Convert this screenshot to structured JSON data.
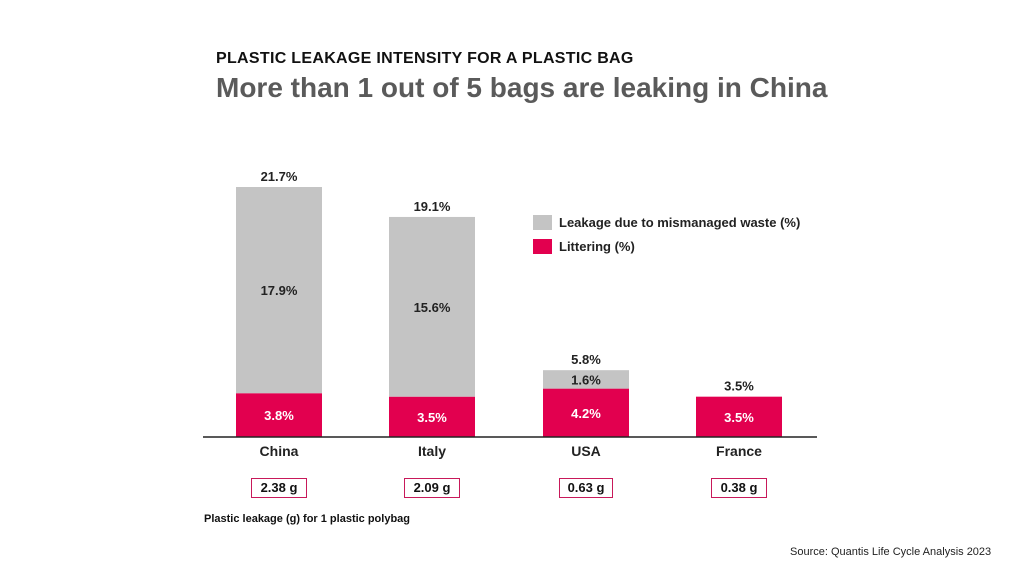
{
  "header": {
    "kicker": "PLASTIC LEAKAGE INTENSITY FOR A PLASTIC BAG",
    "headline": "More than 1 out of 5 bags are leaking in China"
  },
  "colors": {
    "mismanaged": "#c4c4c4",
    "littering": "#e2004f",
    "axis": "#222222"
  },
  "legend": [
    {
      "label": "Leakage due to mismanaged waste (%)",
      "color_key": "mismanaged"
    },
    {
      "label": "Littering (%)",
      "color_key": "littering"
    }
  ],
  "chart_data": {
    "type": "bar",
    "stacked": true,
    "categories": [
      "China",
      "Italy",
      "USA",
      "France"
    ],
    "series": [
      {
        "name": "Littering (%)",
        "values": [
          3.8,
          3.5,
          4.2,
          3.5
        ],
        "labels": [
          "3.8%",
          "3.5%",
          "4.2%",
          "3.5%"
        ]
      },
      {
        "name": "Leakage due to mismanaged waste (%)",
        "values": [
          17.9,
          15.6,
          1.6,
          0
        ],
        "labels": [
          "17.9%",
          "15.6%",
          "1.6%",
          ""
        ]
      }
    ],
    "totals": [
      "21.7%",
      "19.1%",
      "5.8%",
      "3.5%"
    ],
    "ylim": [
      0,
      21.7
    ],
    "legend_position": "top-right",
    "grid": false
  },
  "grams": {
    "caption": "Plastic leakage (g) for 1 plastic polybag",
    "values": [
      "2.38 g",
      "2.09 g",
      "0.63 g",
      "0.38 g"
    ]
  },
  "source": "Source:  Quantis Life Cycle Analysis 2023"
}
